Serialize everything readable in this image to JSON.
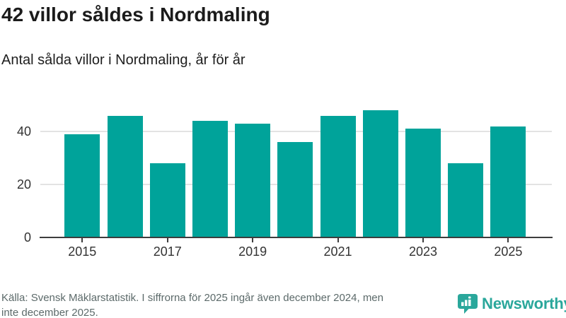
{
  "chart_data": {
    "type": "bar",
    "title": "42 villor såldes i Nordmaling",
    "subtitle": "Antal sålda villor i Nordmaling, år för år",
    "categories": [
      "2015",
      "2016",
      "2017",
      "2018",
      "2019",
      "2020",
      "2021",
      "2022",
      "2023",
      "2024",
      "2025"
    ],
    "values": [
      39,
      46,
      28,
      44,
      43,
      36,
      46,
      48,
      41,
      28,
      42
    ],
    "xlabel": "",
    "ylabel": "",
    "ylim": [
      0,
      50
    ],
    "yticks": [
      0,
      20,
      40
    ],
    "xtick_labels": [
      "2015",
      "2017",
      "2019",
      "2021",
      "2023",
      "2025"
    ],
    "grid": "horizontal gridlines at 20 and 40",
    "legend": "none",
    "bar_color": "#00a39a",
    "grid_color": "#e3e3e3",
    "axis_color": "#3d3d3d",
    "tick_label_color": "#333333"
  },
  "footer": {
    "source_line1": "Källa: Svensk Mäklarstatistik. I siffrorna för 2025 ingår även december 2024, men",
    "source_line2": "inte december 2025.",
    "source_color": "#5c6a6a",
    "brand": "Newsworthy",
    "brand_color": "#2aa79b",
    "brand_icon": "bar-chart-speech-bubble"
  }
}
